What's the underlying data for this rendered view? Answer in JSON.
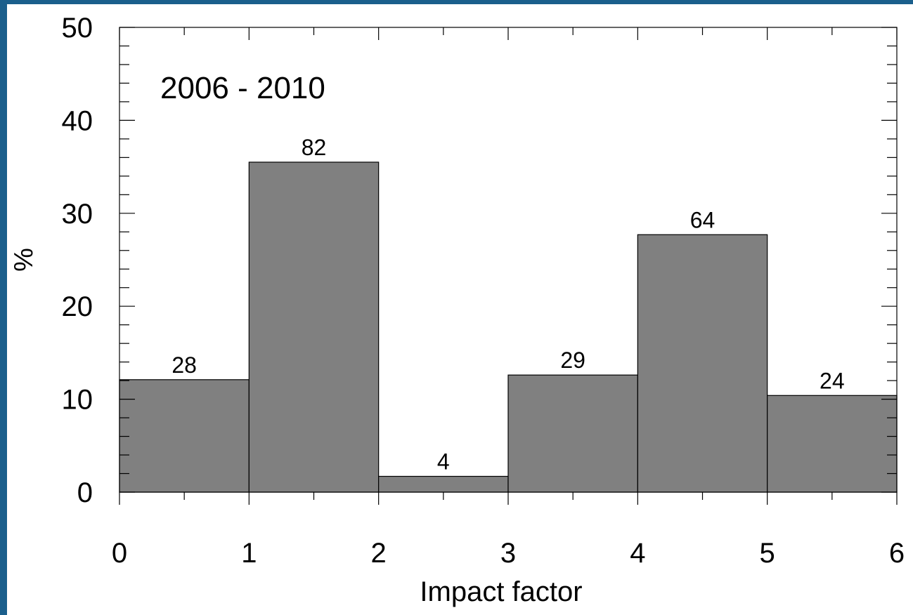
{
  "chart_data": {
    "type": "bar",
    "annotation": "2006 - 2010",
    "xlabel": "Impact factor",
    "ylabel": "%",
    "bins": [
      [
        0,
        1
      ],
      [
        1,
        2
      ],
      [
        2,
        3
      ],
      [
        3,
        4
      ],
      [
        4,
        5
      ],
      [
        5,
        6
      ]
    ],
    "values": [
      12.1,
      35.5,
      1.7,
      12.6,
      27.7,
      10.4
    ],
    "counts": [
      "28",
      "82",
      "4",
      "29",
      "64",
      "24"
    ],
    "xlim": [
      0,
      6
    ],
    "ylim": [
      0,
      50
    ],
    "xticks": [
      "0",
      "1",
      "2",
      "3",
      "4",
      "5",
      "6"
    ],
    "yticks": [
      "0",
      "10",
      "20",
      "30",
      "40",
      "50"
    ],
    "grid": false,
    "bar_color": "#808080",
    "background_border_color": "#1b5f8c"
  }
}
